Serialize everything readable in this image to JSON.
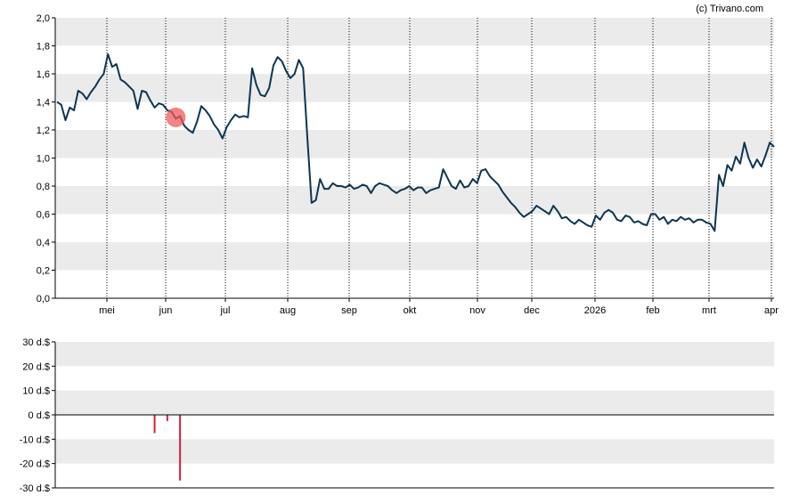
{
  "copyright": "(c) Trivano.com",
  "colors": {
    "line": "#0d3551",
    "band": "#ebebeb",
    "marker": "#f05a5a",
    "bar": "#d6203d"
  },
  "chart_data": [
    {
      "type": "line",
      "ylim": [
        0,
        2.0
      ],
      "y_ticks": [
        "0,0",
        "0,2",
        "0,4",
        "0,6",
        "0,8",
        "1,0",
        "1,2",
        "1,4",
        "1,6",
        "1,8",
        "2,0"
      ],
      "x_ticks": [
        "mei",
        "jun",
        "jul",
        "aug",
        "sep",
        "okt",
        "nov",
        "dec",
        "2026",
        "feb",
        "mrt",
        "apr"
      ],
      "grid": true,
      "series": [
        {
          "values": [
            1.4,
            1.38,
            1.27,
            1.36,
            1.34,
            1.48,
            1.46,
            1.42,
            1.47,
            1.51,
            1.56,
            1.6,
            1.74,
            1.65,
            1.67,
            1.56,
            1.54,
            1.51,
            1.48,
            1.35,
            1.48,
            1.47,
            1.41,
            1.36,
            1.39,
            1.38,
            1.34,
            1.33,
            1.28,
            1.3,
            1.23,
            1.2,
            1.18,
            1.26,
            1.37,
            1.34,
            1.3,
            1.24,
            1.2,
            1.14,
            1.22,
            1.27,
            1.31,
            1.29,
            1.3,
            1.29,
            1.64,
            1.52,
            1.45,
            1.44,
            1.5,
            1.66,
            1.72,
            1.69,
            1.62,
            1.57,
            1.6,
            1.7,
            1.64,
            1.15,
            0.68,
            0.7,
            0.85,
            0.78,
            0.78,
            0.82,
            0.8,
            0.8,
            0.79,
            0.81,
            0.78,
            0.79,
            0.81,
            0.8,
            0.75,
            0.8,
            0.82,
            0.81,
            0.8,
            0.77,
            0.75,
            0.77,
            0.78,
            0.8,
            0.77,
            0.79,
            0.79,
            0.75,
            0.77,
            0.78,
            0.79,
            0.92,
            0.86,
            0.8,
            0.78,
            0.84,
            0.79,
            0.8,
            0.85,
            0.82,
            0.91,
            0.92,
            0.87,
            0.84,
            0.81,
            0.76,
            0.72,
            0.68,
            0.65,
            0.61,
            0.58,
            0.6,
            0.62,
            0.66,
            0.64,
            0.62,
            0.6,
            0.66,
            0.62,
            0.57,
            0.58,
            0.55,
            0.53,
            0.56,
            0.54,
            0.52,
            0.51,
            0.59,
            0.56,
            0.61,
            0.63,
            0.61,
            0.56,
            0.55,
            0.59,
            0.58,
            0.54,
            0.55,
            0.53,
            0.52,
            0.6,
            0.6,
            0.56,
            0.58,
            0.53,
            0.56,
            0.55,
            0.58,
            0.56,
            0.57,
            0.54,
            0.56,
            0.56,
            0.54,
            0.53,
            0.48,
            0.88,
            0.8,
            0.95,
            0.91,
            1.01,
            0.96,
            1.11,
            1.0,
            0.93,
            0.99,
            0.94,
            1.02,
            1.11,
            1.08
          ]
        }
      ],
      "markers": [
        {
          "x_index": 28,
          "y": 1.29
        }
      ]
    },
    {
      "type": "bar",
      "ylim": [
        -30,
        30
      ],
      "y_ticks": [
        "30 d.$",
        "20 d.$",
        "10 d.$",
        "0 d.$",
        "-10 d.$",
        "-20 d.$",
        "-30 d.$"
      ],
      "grid": true,
      "bars": [
        {
          "x_index": 23,
          "value": -7.5
        },
        {
          "x_index": 26,
          "value": -2.5
        },
        {
          "x_index": 29,
          "value": -27
        }
      ]
    }
  ]
}
